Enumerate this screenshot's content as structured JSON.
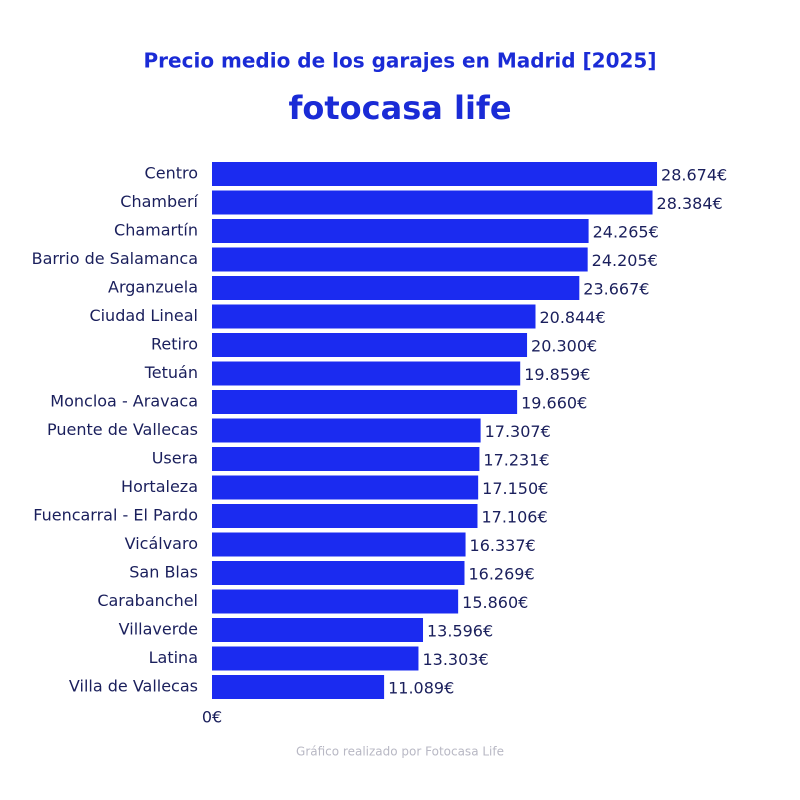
{
  "chart_data": {
    "type": "bar",
    "orientation": "horizontal",
    "title": "Precio medio de los garajes en Madrid [2025]",
    "logo": "fotocasa life",
    "footer": "Gráfico realizado por Fotocasa Life",
    "categories": [
      "Centro",
      "Chamberí",
      "Chamartín",
      "Barrio de Salamanca",
      "Arganzuela",
      "Ciudad Lineal",
      "Retiro",
      "Tetuán",
      "Moncloa - Aravaca",
      "Puente de Vallecas",
      "Usera",
      "Hortaleza",
      "Fuencarral - El Pardo",
      "Vicálvaro",
      "San Blas",
      "Carabanchel",
      "Villaverde",
      "Latina",
      "Villa de Vallecas"
    ],
    "values": [
      28674,
      28384,
      24265,
      24205,
      23667,
      20844,
      20300,
      19859,
      19660,
      17307,
      17231,
      17150,
      17106,
      16337,
      16269,
      15860,
      13596,
      13303,
      11089
    ],
    "value_labels": [
      "28.674€",
      "28.384€",
      "24.265€",
      "24.205€",
      "23.667€",
      "20.844€",
      "20.300€",
      "19.859€",
      "19.660€",
      "17.307€",
      "17.231€",
      "17.150€",
      "17.106€",
      "16.337€",
      "16.269€",
      "15.860€",
      "13.596€",
      "13.303€",
      "11.089€"
    ],
    "color": "#1b2bf0",
    "xlim": [
      0,
      30000
    ],
    "xticks": [
      {
        "value": 0,
        "label": "0€"
      }
    ],
    "grid": false
  }
}
